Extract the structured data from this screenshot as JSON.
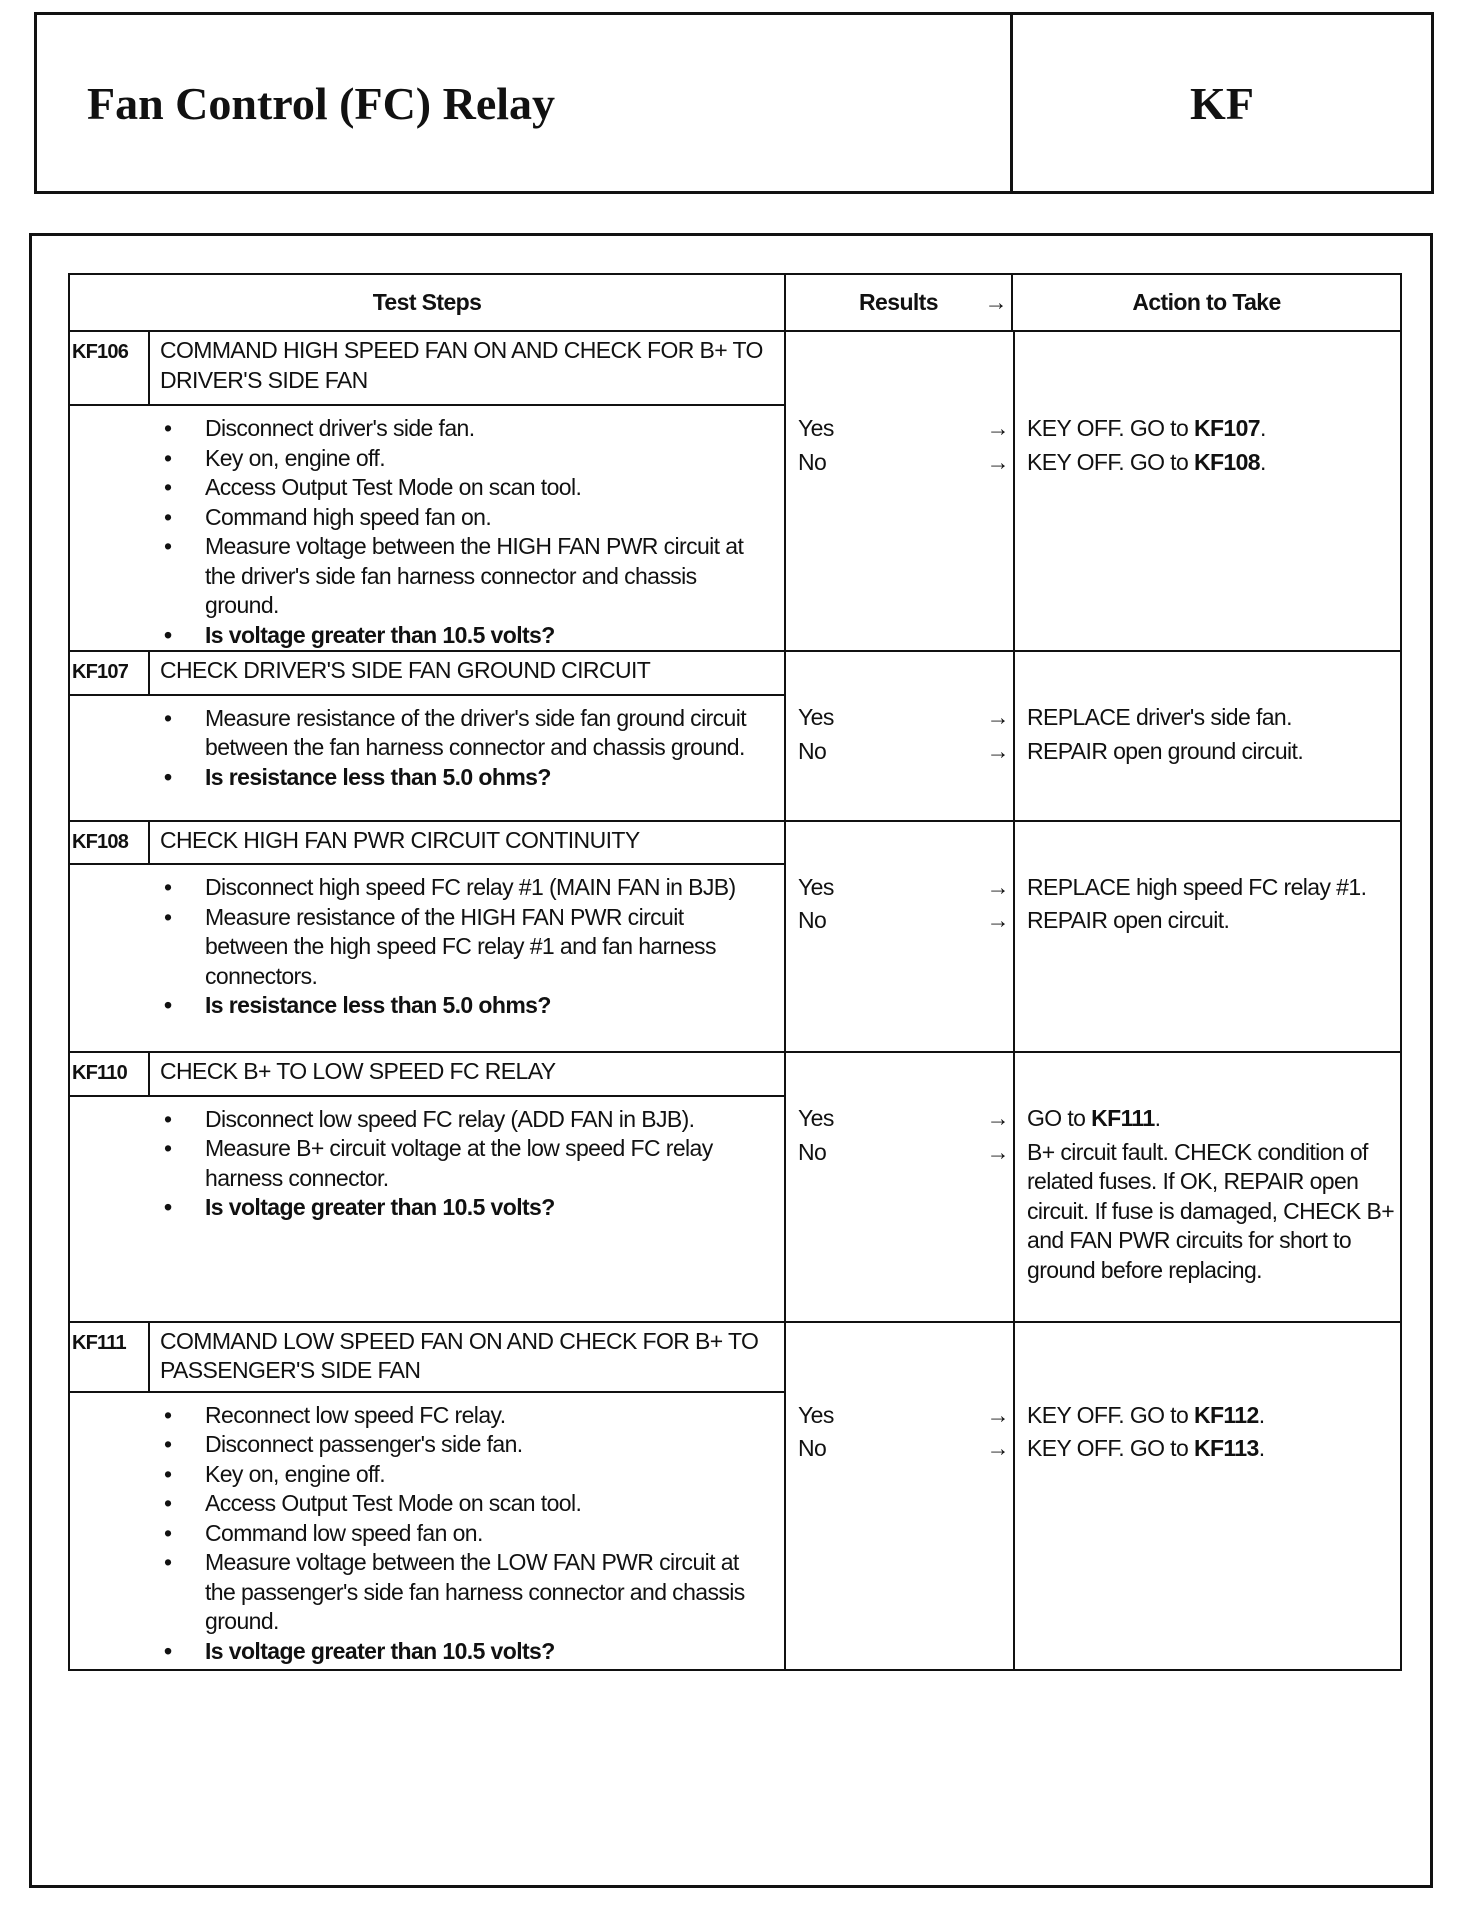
{
  "header": {
    "title": "Fan Control (FC) Relay",
    "code": "KF"
  },
  "columns": {
    "test_steps": "Test Steps",
    "results": "Results",
    "arrow": "→",
    "action": "Action to Take"
  },
  "steps": [
    {
      "id": "KF106",
      "title": "COMMAND HIGH SPEED FAN ON AND CHECK FOR B+ TO DRIVER'S SIDE FAN",
      "bullets": [
        {
          "t": "Disconnect driver's side fan."
        },
        {
          "t": "Key on, engine off."
        },
        {
          "t": "Access Output Test Mode on scan tool."
        },
        {
          "t": "Command high speed fan on."
        },
        {
          "t": "Measure voltage between the HIGH FAN PWR circuit at the driver's side fan harness connector and chassis ground."
        },
        {
          "t": "Is voltage greater than 10.5 volts?",
          "b": true
        }
      ],
      "results": [
        {
          "r": "Yes",
          "a": [
            {
              "t": "KEY OFF. GO to "
            },
            {
              "t": "KF107",
              "b": true
            },
            {
              "t": "."
            }
          ]
        },
        {
          "r": "No",
          "a": [
            {
              "t": "KEY OFF. GO to "
            },
            {
              "t": "KF108",
              "b": true
            },
            {
              "t": "."
            }
          ]
        }
      ]
    },
    {
      "id": "KF107",
      "title": "CHECK DRIVER'S SIDE FAN GROUND CIRCUIT",
      "bullets": [
        {
          "t": "Measure resistance of the driver's side fan ground circuit between the fan harness connector and chassis ground."
        },
        {
          "t": "Is resistance less than 5.0 ohms?",
          "b": true
        }
      ],
      "results": [
        {
          "r": "Yes",
          "a": [
            {
              "t": "REPLACE driver's side fan."
            }
          ]
        },
        {
          "r": "No",
          "a": [
            {
              "t": "REPAIR open ground circuit."
            }
          ]
        }
      ]
    },
    {
      "id": "KF108",
      "title": "CHECK HIGH FAN PWR CIRCUIT CONTINUITY",
      "bullets": [
        {
          "t": "Disconnect high speed FC relay #1 (MAIN FAN in BJB)"
        },
        {
          "t": "Measure resistance of the HIGH FAN PWR circuit between the high speed FC relay #1 and fan harness connectors."
        },
        {
          "t": "Is resistance less than 5.0 ohms?",
          "b": true
        }
      ],
      "results": [
        {
          "r": "Yes",
          "a": [
            {
              "t": "REPLACE high speed FC relay #1."
            }
          ]
        },
        {
          "r": "No",
          "a": [
            {
              "t": "REPAIR open circuit."
            }
          ]
        }
      ]
    },
    {
      "id": "KF110",
      "title": "CHECK B+ TO LOW SPEED FC RELAY",
      "bullets": [
        {
          "t": "Disconnect low speed FC relay (ADD FAN in BJB)."
        },
        {
          "t": "Measure B+ circuit voltage at the low speed FC relay harness connector."
        },
        {
          "t": "Is voltage greater than 10.5 volts?",
          "b": true
        }
      ],
      "results": [
        {
          "r": "Yes",
          "a": [
            {
              "t": "GO to "
            },
            {
              "t": "KF111",
              "b": true
            },
            {
              "t": "."
            }
          ]
        },
        {
          "r": "No",
          "a": [
            {
              "t": "B+ circuit fault. CHECK condition of related fuses. If OK, REPAIR open circuit. If fuse is damaged, CHECK B+ and FAN PWR circuits for short to ground before replacing."
            }
          ]
        }
      ]
    },
    {
      "id": "KF111",
      "title": "COMMAND LOW SPEED FAN ON AND CHECK FOR B+ TO PASSENGER'S SIDE FAN",
      "bullets": [
        {
          "t": "Reconnect low speed FC relay."
        },
        {
          "t": "Disconnect passenger's side fan."
        },
        {
          "t": "Key on, engine off."
        },
        {
          "t": "Access Output Test Mode on scan tool."
        },
        {
          "t": "Command low speed fan on."
        },
        {
          "t": "Measure voltage between the LOW FAN PWR circuit at the passenger's side fan harness connector and chassis ground."
        },
        {
          "t": "Is voltage greater than 10.5 volts?",
          "b": true
        }
      ],
      "results": [
        {
          "r": "Yes",
          "a": [
            {
              "t": "KEY OFF. GO to "
            },
            {
              "t": "KF112",
              "b": true
            },
            {
              "t": "."
            }
          ]
        },
        {
          "r": "No",
          "a": [
            {
              "t": "KEY OFF. GO to "
            },
            {
              "t": "KF113",
              "b": true
            },
            {
              "t": "."
            }
          ]
        }
      ]
    }
  ]
}
